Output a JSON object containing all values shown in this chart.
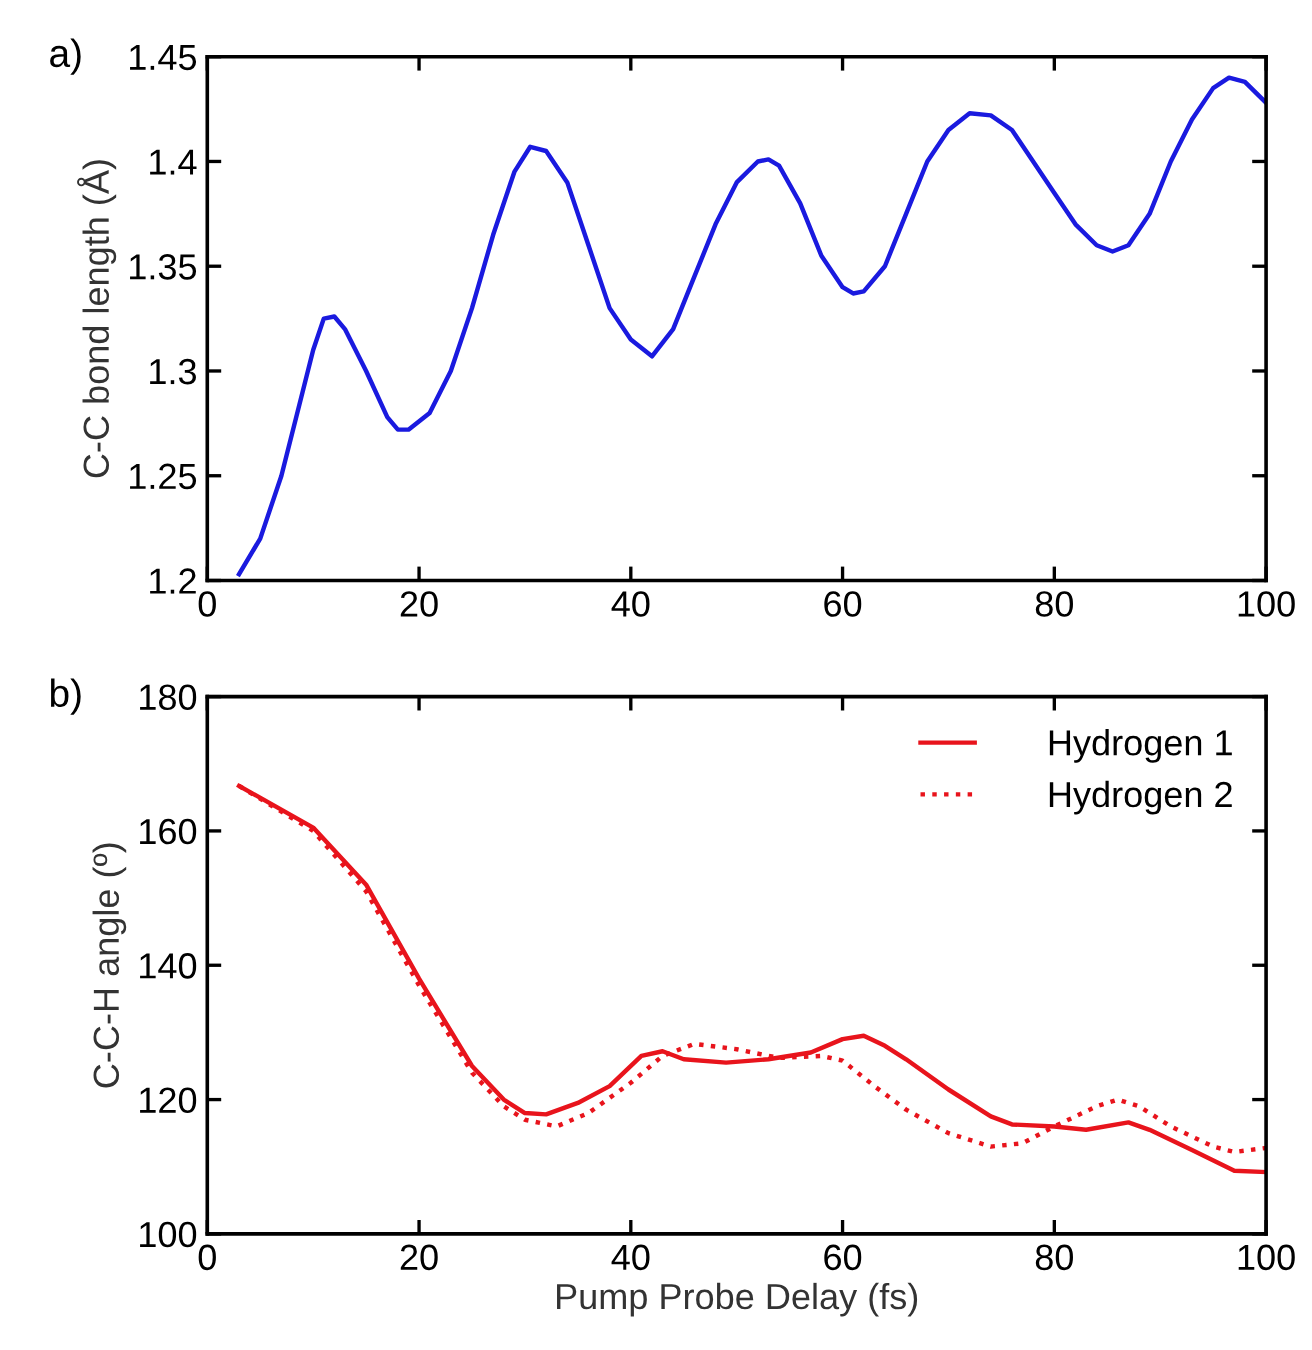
{
  "chart_data": [
    {
      "type": "line",
      "annotations": [
        "a)"
      ],
      "ylabel": "C-C bond length (Å)",
      "xlim": [
        0,
        100
      ],
      "xticks": [
        0,
        20,
        40,
        60,
        80,
        100
      ],
      "ylim": [
        1.2,
        1.45
      ],
      "yticks": [
        1.2,
        1.25,
        1.3,
        1.35,
        1.4,
        1.45
      ],
      "grid": false,
      "legend": false,
      "series": [
        {
          "color": "#1a1adf",
          "line_style": "solid",
          "x": [
            3,
            5,
            7,
            9,
            10,
            11,
            12,
            13,
            15,
            17,
            18,
            19,
            21,
            23,
            25,
            27,
            29,
            30.5,
            32,
            34,
            36,
            38,
            40,
            42,
            44,
            46,
            48,
            50,
            52,
            53,
            54,
            56,
            58,
            60,
            61,
            62,
            64,
            66,
            68,
            70,
            72,
            74,
            76,
            78,
            80,
            82,
            84,
            85.5,
            87,
            89,
            91,
            93,
            95,
            96.5,
            98,
            100
          ],
          "values": [
            1.203,
            1.22,
            1.25,
            1.29,
            1.31,
            1.325,
            1.326,
            1.32,
            1.3,
            1.278,
            1.272,
            1.272,
            1.28,
            1.3,
            1.33,
            1.365,
            1.395,
            1.407,
            1.405,
            1.39,
            1.36,
            1.33,
            1.315,
            1.307,
            1.32,
            1.345,
            1.37,
            1.39,
            1.4,
            1.401,
            1.398,
            1.38,
            1.355,
            1.34,
            1.337,
            1.338,
            1.35,
            1.375,
            1.4,
            1.415,
            1.423,
            1.422,
            1.415,
            1.4,
            1.385,
            1.37,
            1.36,
            1.357,
            1.36,
            1.375,
            1.4,
            1.42,
            1.435,
            1.44,
            1.438,
            1.428
          ]
        }
      ]
    },
    {
      "type": "line",
      "annotations": [
        "b)"
      ],
      "xlabel": "Pump Probe Delay (fs)",
      "ylabel": "C-C-H angle (º)",
      "xlim": [
        0,
        100
      ],
      "xticks": [
        0,
        20,
        40,
        60,
        80,
        100
      ],
      "ylim": [
        100,
        180
      ],
      "yticks": [
        100,
        120,
        140,
        160,
        180
      ],
      "grid": false,
      "legend": "top right",
      "series": [
        {
          "name": "Hydrogen 1",
          "color": "#e8141c",
          "line_style": "solid",
          "x": [
            3,
            10,
            15,
            20,
            25,
            28,
            30,
            32,
            35,
            38,
            41,
            43,
            45,
            49,
            53,
            57,
            60,
            62,
            64,
            66,
            70,
            74,
            76,
            80,
            83,
            87,
            89,
            93,
            97,
            100
          ],
          "values": [
            166.7,
            160.5,
            152,
            138,
            125,
            120,
            118,
            117.8,
            119.5,
            122,
            126.5,
            127.2,
            126,
            125.5,
            126,
            127,
            129,
            129.5,
            128,
            126,
            121.5,
            117.5,
            116.3,
            116,
            115.5,
            116.6,
            115.5,
            112.5,
            109.4,
            109.2
          ]
        },
        {
          "name": "Hydrogen 2",
          "color": "#e8141c",
          "line_style": "dotted",
          "x": [
            3,
            10,
            15,
            20,
            25,
            28,
            30,
            33,
            36,
            40,
            43,
            46,
            50,
            54,
            58,
            60,
            63,
            66,
            70,
            74,
            77,
            80,
            84,
            86,
            88,
            91,
            95,
            97,
            100
          ],
          "values": [
            166.7,
            160,
            151,
            137,
            124,
            119,
            117,
            116,
            118,
            122.5,
            126.5,
            128.3,
            127.5,
            126.2,
            126.5,
            125.8,
            122,
            118.5,
            115,
            113,
            113.5,
            116,
            119,
            120,
            119,
            116,
            113,
            112.2,
            112.8
          ]
        }
      ]
    }
  ]
}
